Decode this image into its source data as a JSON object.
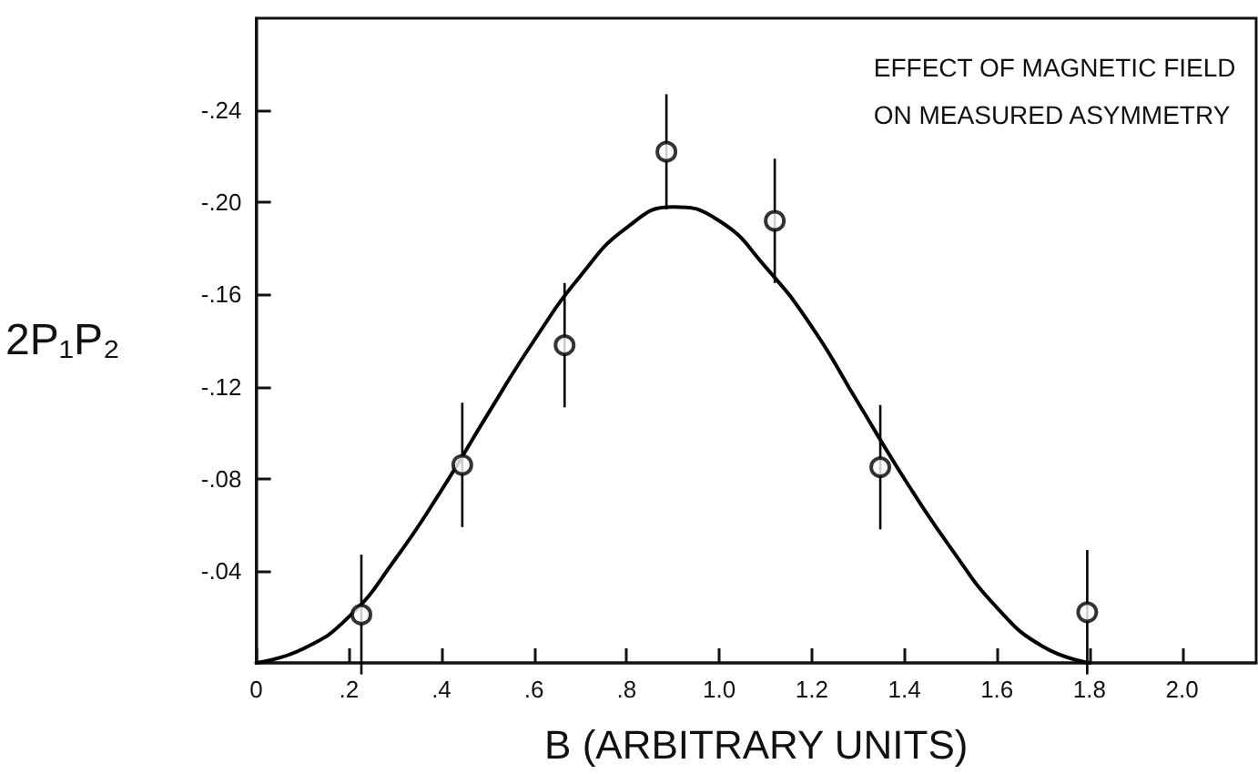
{
  "chart_data": {
    "type": "scatter",
    "xlabel": "B (ARBITRARY UNITS)",
    "ylabel": "2P₁P₂",
    "annotations": [
      "EFFECT OF MAGNETIC FIELD\nON MEASURED ASYMMETRY"
    ],
    "xlim": [
      0,
      2.16
    ],
    "ylim": [
      0,
      -0.28
    ],
    "xticks": [
      0,
      {
        "value": 0.2,
        "label": ".2"
      },
      {
        "value": 0.4,
        "label": ".4"
      },
      {
        "value": 0.6,
        "label": ".6"
      },
      {
        "value": 0.8,
        "label": ".8"
      },
      {
        "value": 1.0,
        "label": "1.0"
      },
      {
        "value": 1.2,
        "label": "1.2"
      },
      {
        "value": 1.4,
        "label": "1.4"
      },
      {
        "value": 1.6,
        "label": "1.6"
      },
      {
        "value": 1.8,
        "label": "1.8"
      },
      {
        "value": 2.0,
        "label": "2.0"
      }
    ],
    "yticks": [
      {
        "value": -0.04,
        "label": "-.04"
      },
      {
        "value": -0.08,
        "label": "-.08"
      },
      {
        "value": -0.12,
        "label": "-.12"
      },
      {
        "value": -0.16,
        "label": "-.16"
      },
      {
        "value": -0.2,
        "label": "-.20"
      },
      {
        "value": -0.24,
        "label": "-.24"
      }
    ],
    "grid": false,
    "series": [
      {
        "color": "#000000",
        "marker": "circle",
        "x": [
          0.227,
          0.445,
          0.666,
          0.886,
          1.12,
          1.348,
          1.795
        ],
        "values": [
          -0.021,
          -0.086,
          -0.138,
          -0.222,
          -0.192,
          -0.085,
          -0.022
        ],
        "errors": [
          0.026,
          0.027,
          0.027,
          0.025,
          0.027,
          0.027,
          0.027
        ]
      },
      {
        "type": "line",
        "color": "#000000",
        "marker": "none",
        "line_style": "solid",
        "x": [
          0,
          0.1,
          0.2,
          0.3,
          0.4,
          0.5,
          0.6,
          0.7,
          0.8,
          0.9,
          1.0,
          1.1,
          1.2,
          1.3,
          1.4,
          1.5,
          1.6,
          1.7,
          1.8
        ],
        "values": [
          0,
          -0.006,
          -0.02,
          -0.045,
          -0.075,
          -0.108,
          -0.14,
          -0.168,
          -0.189,
          -0.198,
          -0.192,
          -0.172,
          -0.146,
          -0.113,
          -0.08,
          -0.05,
          -0.024,
          -0.007,
          0
        ]
      }
    ]
  }
}
